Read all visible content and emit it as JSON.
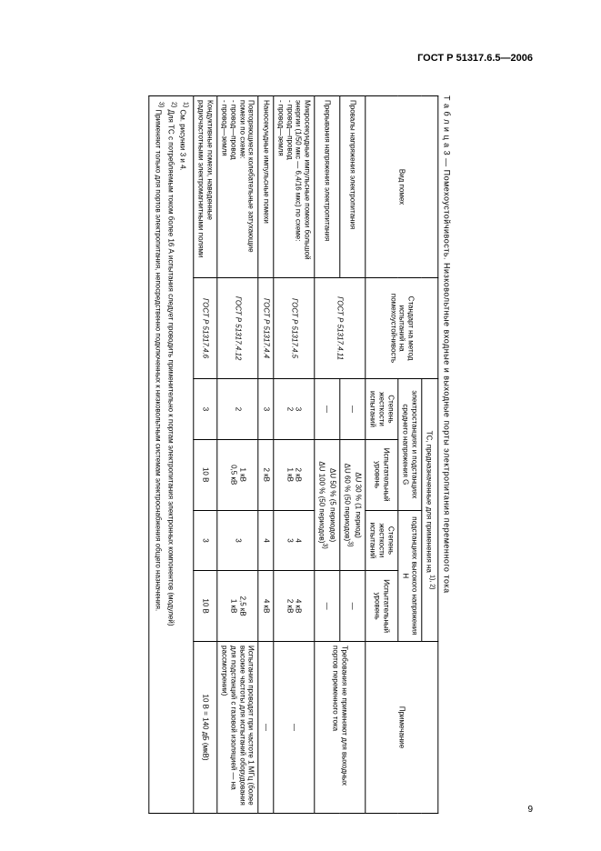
{
  "header": "ГОСТ Р 51317.6.5—2006",
  "page_number": "9",
  "table_caption": "Т а б л и ц а   3 — Помехоустойчивость. Низковольтные входные и выходные порты электропитания переменного тока",
  "col_headers": {
    "type": "Вид помех",
    "std": "Стандарт на метод испытаний на помехоустойчивость",
    "tc": "ТС, предназначенные для применения на",
    "sup1": "1), 2)",
    "group_g": "электростанциях и подстанциях среднего напряжения G",
    "group_h": "подстанциях высокого напряжения H",
    "severity": "Степень жесткости испытаний",
    "level": "Испытательный уровень",
    "note": "Примечание"
  },
  "rows": [
    {
      "type": "Провалы напряжения электропитания",
      "std": "ГОСТ Р 51317.4.11",
      "g_sev": "—",
      "g_lvl_span": true,
      "gh_lvl1": "ΔU 30 % (1 период)",
      "gh_lvl2": "ΔU 60 % (50 периодов)",
      "gh_sup": "3)",
      "h_lvl": "—",
      "note": "Требования не применяют для выходных портов переменного тока",
      "note_rowspan": 2
    },
    {
      "type": "Прерывания напряжения электропитания",
      "std": "",
      "g_sev": "—",
      "g_lvl_span": true,
      "gh_lvl1": "ΔU 50 % (5 периодов)",
      "gh_lvl2": "ΔU 100 % (50 периодов)",
      "gh_sup": "3)",
      "h_lvl": "—"
    },
    {
      "type": "Микросекундные импульсные помехи большой энергии (1/50 мкс — 6,4/16 мкс) по схеме:\n- провод—провод\n- провод—земля",
      "std": "ГОСТ Р 51317.4.5",
      "g_sev": "3\n2",
      "g_lvl": "2 кВ\n1 кВ",
      "h_sev": "4\n3",
      "h_lvl": "4 кВ\n2 кВ",
      "note": "—"
    },
    {
      "type": "Наносекундные импульсные помехи",
      "std": "ГОСТ Р 51317.4.4",
      "g_sev": "3",
      "g_lvl": "2 кВ",
      "h_sev": "4",
      "h_lvl": "4 кВ",
      "note": "—"
    },
    {
      "type": "Повторяющиеся колебательные затухающие помехи по схеме:\n- провод—провод\n- провод—земля",
      "std": "ГОСТ Р 51317.4.12",
      "g_sev": "2",
      "g_lvl": "1 кВ\n0,5 кВ",
      "h_sev": "3",
      "h_lvl": "2,5 кВ\n1 кВ",
      "note": "Испытания проводят при частоте 1 МГц (более высокие частоты для испытаний оборудования для подстанций с газовой изоляцией — на рассмотрении)"
    },
    {
      "type": "Кондуктивные помехи, наведенные радиочастотными электромагнитными полями",
      "std": "ГОСТ Р 51317.4.6",
      "g_sev": "3",
      "g_lvl": "10 В",
      "h_sev": "3",
      "h_lvl": "10 В",
      "note": "10 В = 140 дБ (мкВ)"
    }
  ],
  "footnotes": {
    "f1": "См. рисунки 3 и 4.",
    "f2": "Для ТС с потребляемым током более 16 А испытания следует проводить применительно к портам электропитания электронных компонентов (модулей)",
    "f3": "Применяют только для портов электропитания, непосредственно подключенных к низковольтным системам электроснабжения общего назначения."
  }
}
